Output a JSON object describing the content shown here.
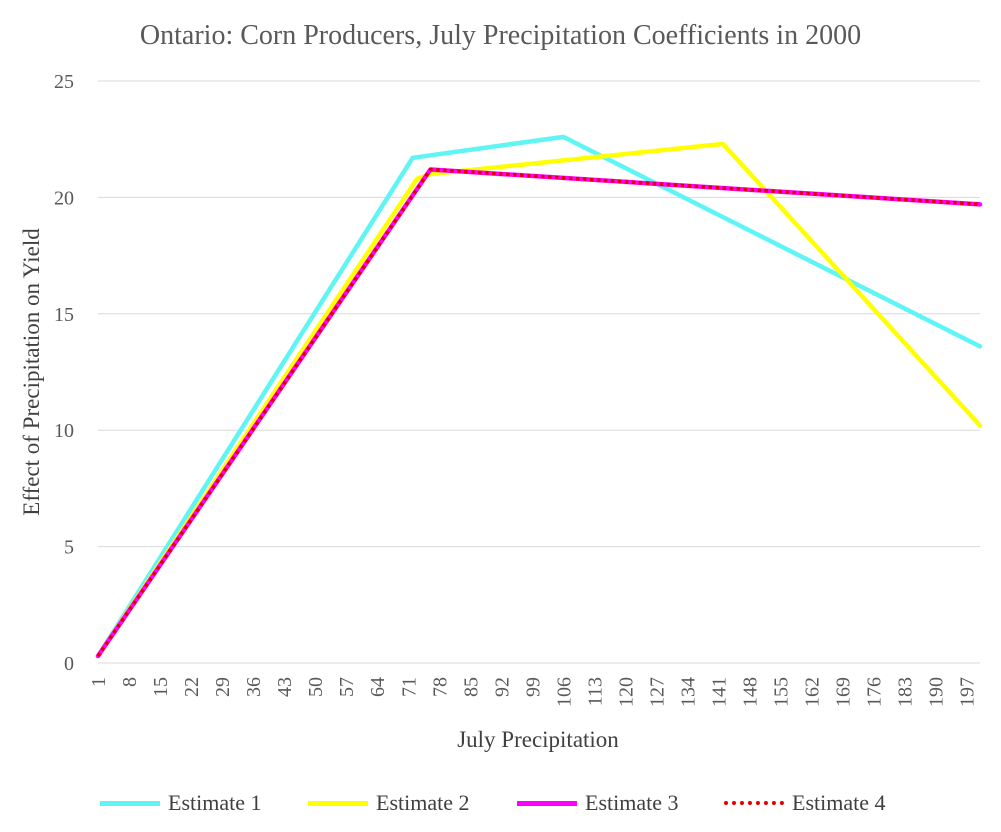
{
  "chart_data": {
    "type": "line",
    "title": "Ontario: Corn Producers, July Precipitation Coefficients in 2000",
    "xlabel": "July Precipitation",
    "ylabel": "Effect of Precipitation on Yield",
    "ylim": [
      0,
      25
    ],
    "yticks": [
      "0",
      "5",
      "10",
      "15",
      "20",
      "25"
    ],
    "xlim": [
      1,
      200
    ],
    "x_tick_labels": [
      "1",
      "8",
      "15",
      "22",
      "29",
      "36",
      "43",
      "50",
      "57",
      "64",
      "71",
      "78",
      "85",
      "92",
      "99",
      "106",
      "113",
      "120",
      "127",
      "134",
      "141",
      "148",
      "155",
      "162",
      "169",
      "176",
      "183",
      "190",
      "197"
    ],
    "grid": "horizontal",
    "legend_position": "bottom",
    "series": [
      {
        "name": "Estimate 1",
        "color": "#5ff5f5",
        "style": "solid",
        "points": [
          [
            1,
            0.3
          ],
          [
            72,
            21.7
          ],
          [
            106,
            22.6
          ],
          [
            200,
            13.6
          ]
        ]
      },
      {
        "name": "Estimate 2",
        "color": "#ffff00",
        "style": "solid",
        "points": [
          [
            1,
            0.3
          ],
          [
            73,
            20.8
          ],
          [
            76,
            21.0
          ],
          [
            142,
            22.3
          ],
          [
            200,
            10.2
          ]
        ]
      },
      {
        "name": "Estimate 3",
        "color": "#ff00ff",
        "style": "solid",
        "points": [
          [
            1,
            0.3
          ],
          [
            76,
            21.2
          ],
          [
            200,
            19.7
          ]
        ]
      },
      {
        "name": "Estimate 4",
        "color": "#e00000",
        "style": "dotted",
        "points": [
          [
            1,
            0.3
          ],
          [
            76,
            21.2
          ],
          [
            200,
            19.7
          ]
        ]
      }
    ]
  }
}
